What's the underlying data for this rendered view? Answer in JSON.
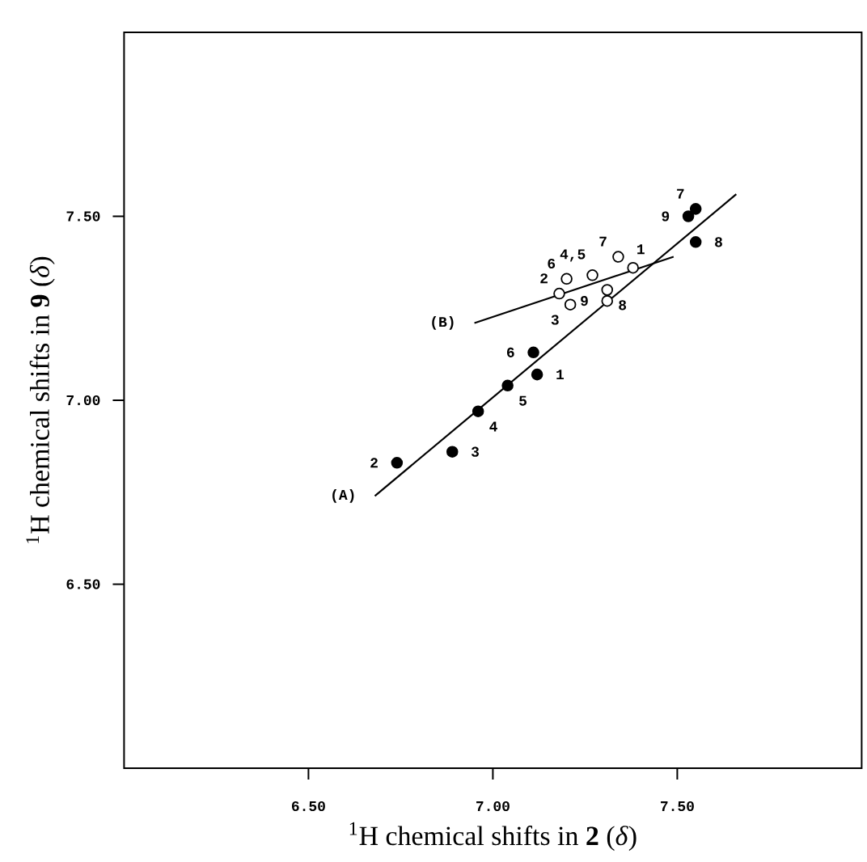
{
  "chart_data": {
    "type": "scatter",
    "xlabel": "$^{1}$H chemical shifts in **2** (*δ*)",
    "ylabel": "$^{1}$H chemical shifts in **9** (*δ*)",
    "xlim": [
      6.0,
      8.0
    ],
    "ylim": [
      6.0,
      8.0
    ],
    "xticks": [
      {
        "value": 6.5,
        "label": "6.50"
      },
      {
        "value": 7.0,
        "label": "7.00"
      },
      {
        "value": 7.5,
        "label": "7.50"
      }
    ],
    "yticks": [
      {
        "value": 6.5,
        "label": "6.50"
      },
      {
        "value": 7.0,
        "label": "7.00"
      },
      {
        "value": 7.5,
        "label": "7.50"
      }
    ],
    "marker": "circle",
    "series": [
      {
        "color": "#000000",
        "x": [
          7.12,
          6.74,
          6.89,
          6.96,
          7.04,
          7.11,
          7.55,
          7.55,
          7.53
        ],
        "values": [
          7.07,
          6.83,
          6.86,
          6.97,
          7.04,
          7.13,
          7.52,
          7.43,
          7.5
        ]
      },
      {
        "color": "#ffffff",
        "x": [
          7.38,
          7.18,
          7.21,
          7.27,
          7.34,
          7.2,
          7.31,
          7.31
        ],
        "values": [
          7.36,
          7.29,
          7.26,
          7.34,
          7.39,
          7.33,
          7.3,
          7.27
        ]
      },
      {
        "type": "line",
        "marker": "none",
        "color": "#000000",
        "x": [
          6.68,
          7.66
        ],
        "values": [
          6.74,
          7.56
        ]
      },
      {
        "type": "line",
        "marker": "none",
        "color": "#000000",
        "x": [
          6.95,
          7.49
        ],
        "values": [
          7.21,
          7.39
        ]
      }
    ],
    "annotations": [
      {
        "text": "1",
        "x": 7.12,
        "y": 7.07
      },
      {
        "text": "2",
        "x": 6.74,
        "y": 6.83
      },
      {
        "text": "3",
        "x": 6.89,
        "y": 6.86
      },
      {
        "text": "4",
        "x": 6.96,
        "y": 6.97
      },
      {
        "text": "5",
        "x": 7.04,
        "y": 7.04
      },
      {
        "text": "6",
        "x": 7.11,
        "y": 7.13
      },
      {
        "text": "7",
        "x": 7.55,
        "y": 7.52
      },
      {
        "text": "8",
        "x": 7.55,
        "y": 7.43
      },
      {
        "text": "9",
        "x": 7.53,
        "y": 7.5
      },
      {
        "text": "1",
        "x": 7.38,
        "y": 7.36
      },
      {
        "text": "2",
        "x": 7.18,
        "y": 7.29
      },
      {
        "text": "3",
        "x": 7.21,
        "y": 7.26
      },
      {
        "text": "4,5",
        "x": 7.27,
        "y": 7.34
      },
      {
        "text": "7",
        "x": 7.34,
        "y": 7.39
      },
      {
        "text": "6",
        "x": 7.2,
        "y": 7.33
      },
      {
        "text": "8",
        "x": 7.31,
        "y": 7.3
      },
      {
        "text": "9",
        "x": 7.31,
        "y": 7.27
      },
      {
        "text": "(A)",
        "x": 6.68,
        "y": 6.74
      },
      {
        "text": "(B)",
        "x": 6.95,
        "y": 7.21
      }
    ]
  }
}
